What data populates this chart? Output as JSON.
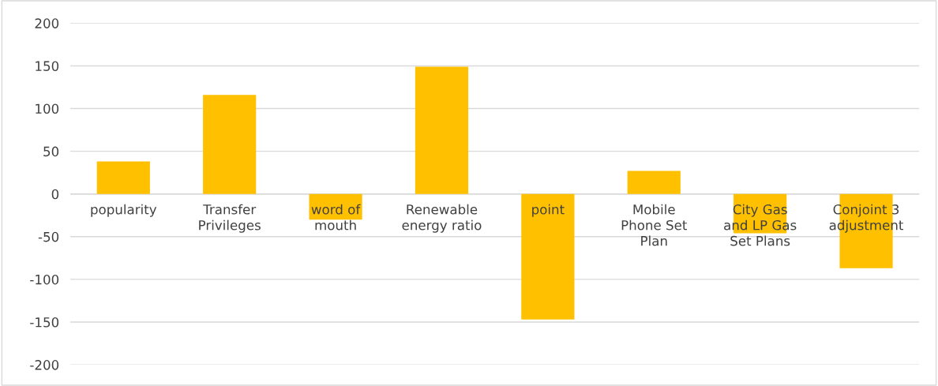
{
  "chart_data": {
    "type": "bar",
    "categories": [
      "popularity",
      "Transfer\nPrivileges",
      "word of\nmouth",
      "Renewable\nenergy ratio",
      "point",
      "Mobile\nPhone Set\nPlan",
      "City Gas\nand LP Gas\nSet Plans",
      "Conjoint 3\nadjustment"
    ],
    "values": [
      38,
      116,
      -30,
      149,
      -147,
      27,
      -46,
      -87
    ],
    "color": "#ffc000",
    "ylim": [
      -200,
      200
    ],
    "yticks": [
      -200,
      -150,
      -100,
      -50,
      0,
      50,
      100,
      150,
      200
    ],
    "grid": "y"
  }
}
